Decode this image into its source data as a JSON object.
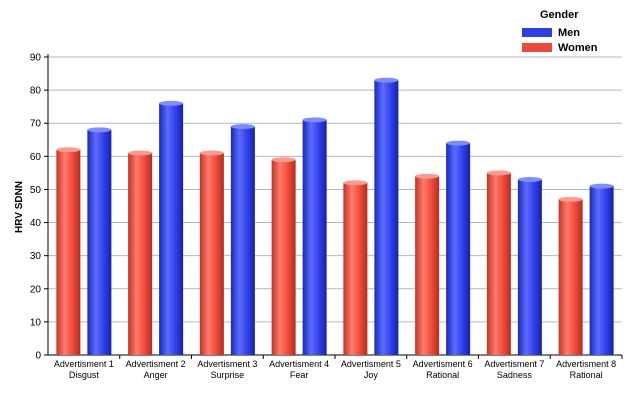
{
  "chart_data": {
    "type": "bar",
    "ylabel": "HRV SDNN",
    "ylim": [
      0,
      90
    ],
    "yticks": [
      0,
      10,
      20,
      30,
      40,
      50,
      60,
      70,
      80,
      90
    ],
    "grid": true,
    "legend_title": "Gender",
    "legend_position": "top-right",
    "categories": [
      [
        "Advertisment 1",
        "Disgust"
      ],
      [
        "Advertisment 2",
        "Anger"
      ],
      [
        "Advertisment 3",
        "Surprise"
      ],
      [
        "Advertisment 4",
        "Fear"
      ],
      [
        "Advertisment 5",
        "Joy"
      ],
      [
        "Advertisment 6",
        "Rational"
      ],
      [
        "Advertisment 7",
        "Sadness"
      ],
      [
        "Advertisment 8",
        "Rational"
      ]
    ],
    "series": [
      {
        "name": "Women",
        "color": "#f0483a",
        "values": [
          62,
          61,
          61,
          59,
          52,
          54,
          55,
          47
        ]
      },
      {
        "name": "Men",
        "color": "#2f3fe8",
        "values": [
          68,
          76,
          69,
          71,
          83,
          64,
          53,
          51
        ]
      }
    ]
  }
}
